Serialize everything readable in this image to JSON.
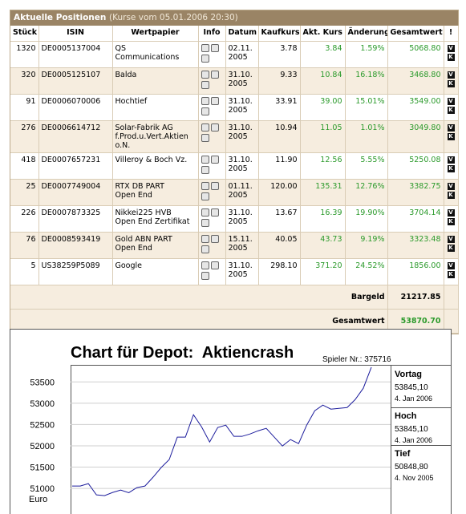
{
  "header": {
    "title": "Aktuelle Positionen",
    "subtitle": "(Kurse vom 05.01.2006 20:30)"
  },
  "table": {
    "columns": [
      "Stück",
      "ISIN",
      "Wertpapier",
      "Info",
      "Datum",
      "Kaufkurs",
      "Akt. Kurs",
      "Änderung",
      "Gesamtwert",
      "!"
    ],
    "row_actions": [
      "V",
      "K"
    ],
    "rows": [
      [
        "1320",
        "DE0005137004",
        [
          "QS",
          "Communications"
        ],
        [
          "02.11.",
          "2005"
        ],
        "3.78",
        "3.84",
        "1.59%",
        "5068.80"
      ],
      [
        "320",
        "DE0005125107",
        [
          "Balda"
        ],
        [
          "31.10.",
          "2005"
        ],
        "9.33",
        "10.84",
        "16.18%",
        "3468.80"
      ],
      [
        "91",
        "DE0006070006",
        [
          "Hochtief"
        ],
        [
          "31.10.",
          "2005"
        ],
        "33.91",
        "39.00",
        "15.01%",
        "3549.00"
      ],
      [
        "276",
        "DE0006614712",
        [
          "Solar-Fabrik AG",
          "f.Prod.u.Vert.Aktien",
          "o.N."
        ],
        [
          "31.10.",
          "2005"
        ],
        "10.94",
        "11.05",
        "1.01%",
        "3049.80"
      ],
      [
        "418",
        "DE0007657231",
        [
          "Villeroy & Boch Vz."
        ],
        [
          "31.10.",
          "2005"
        ],
        "11.90",
        "12.56",
        "5.55%",
        "5250.08"
      ],
      [
        "25",
        "DE0007749004",
        [
          "RTX DB PART",
          "Open End"
        ],
        [
          "01.11.",
          "2005"
        ],
        "120.00",
        "135.31",
        "12.76%",
        "3382.75"
      ],
      [
        "226",
        "DE0007873325",
        [
          "Nikkei225 HVB",
          "Open End Zertifikat"
        ],
        [
          "31.10.",
          "2005"
        ],
        "13.67",
        "16.39",
        "19.90%",
        "3704.14"
      ],
      [
        "76",
        "DE0008593419",
        [
          "Gold ABN PART",
          "Open End"
        ],
        [
          "15.11.",
          "2005"
        ],
        "40.05",
        "43.73",
        "9.19%",
        "3323.48"
      ],
      [
        "5",
        "US38259P5089",
        [
          "Google"
        ],
        [
          "31.10.",
          "2005"
        ],
        "298.10",
        "371.20",
        "24.52%",
        "1856.00"
      ]
    ],
    "summary": [
      {
        "label": "Bargeld",
        "value": "21217.85"
      },
      {
        "label": "Gesamtwert",
        "value": "53870.70"
      }
    ]
  },
  "chart_data": {
    "type": "line",
    "title": "Chart für Depot:  Aktiencrash",
    "subtitle": "Spieler Nr.: 375716",
    "y_label": "Euro",
    "values": [
      51056,
      51056,
      51113,
      50849,
      50831,
      50906,
      50962,
      50900,
      51019,
      51056,
      51263,
      51489,
      51677,
      52203,
      52203,
      52729,
      52447,
      52090,
      52429,
      52485,
      52222,
      52222,
      52278,
      52353,
      52410,
      52203,
      51996,
      52147,
      52053,
      52485,
      52823,
      52955,
      52861,
      52880,
      52898,
      53086,
      53350,
      53845
    ],
    "color": "#1c1c9c",
    "ylim": [
      50400,
      53900
    ],
    "yticks": [
      51000,
      51500,
      52000,
      52500,
      53000,
      53500
    ],
    "grid": true
  },
  "chart_stats": [
    {
      "label": "Vortag",
      "value": "53845,10",
      "date": "4. Jan 2006"
    },
    {
      "label": "Hoch",
      "value": "53845,10",
      "date": "4. Jan 2006"
    },
    {
      "label": "Tief",
      "value": "50848,80",
      "date": "4. Nov 2005"
    }
  ]
}
